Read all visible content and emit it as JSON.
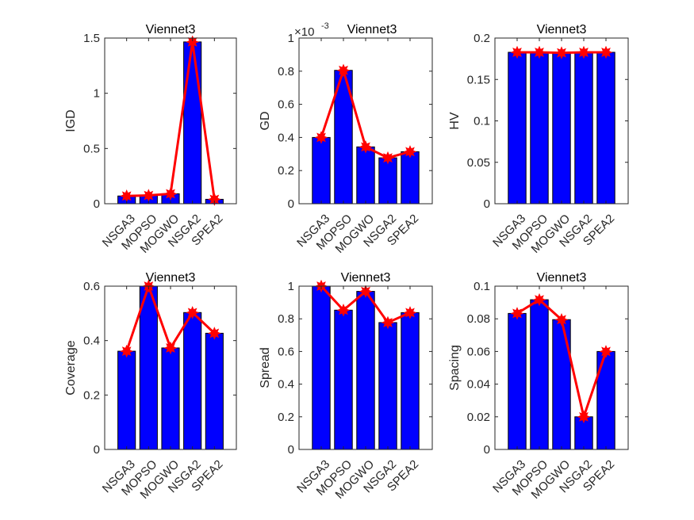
{
  "figure": {
    "bar_color": "#0000ff",
    "bar_edge_color": "#000000",
    "line_color": "#ff0000",
    "axis_color": "#262626"
  },
  "chart_data": [
    {
      "type": "bar",
      "title": "Viennet3",
      "xlabel": "",
      "ylabel": "IGD",
      "categories": [
        "NSGA3",
        "MOPSO",
        "MOGWO",
        "NSGA2",
        "SPEA2"
      ],
      "values": [
        0.07,
        0.075,
        0.09,
        1.465,
        0.04
      ],
      "overlay_line": true,
      "ylim": [
        0,
        1.5
      ],
      "yticks": [
        0,
        0.5,
        1,
        1.5
      ],
      "ytick_labels": [
        "0",
        "0.5",
        "1",
        "1.5"
      ],
      "exponent_label": "",
      "grid": false,
      "legend": "none"
    },
    {
      "type": "bar",
      "title": "Viennet3",
      "xlabel": "",
      "ylabel": "GD",
      "categories": [
        "NSGA3",
        "MOPSO",
        "MOGWO",
        "NSGA2",
        "SPEA2"
      ],
      "values": [
        0.4,
        0.805,
        0.343,
        0.277,
        0.314
      ],
      "value_scale": 0.001,
      "overlay_line": true,
      "ylim": [
        0,
        1
      ],
      "yticks": [
        0,
        0.2,
        0.4,
        0.6,
        0.8,
        1
      ],
      "ytick_labels": [
        "0",
        "0.2",
        "0.4",
        "0.6",
        "0.8",
        "1"
      ],
      "exponent_label": "×10",
      "exponent_power": "-3",
      "grid": false,
      "legend": "none"
    },
    {
      "type": "bar",
      "title": "Viennet3",
      "xlabel": "",
      "ylabel": "HV",
      "categories": [
        "NSGA3",
        "MOPSO",
        "MOGWO",
        "NSGA2",
        "SPEA2"
      ],
      "values": [
        0.1828,
        0.1828,
        0.1822,
        0.1828,
        0.1828
      ],
      "overlay_line": true,
      "ylim": [
        0,
        0.2
      ],
      "yticks": [
        0,
        0.05,
        0.1,
        0.15,
        0.2
      ],
      "ytick_labels": [
        "0",
        "0.05",
        "0.1",
        "0.15",
        "0.2"
      ],
      "exponent_label": "",
      "grid": false,
      "legend": "none"
    },
    {
      "type": "bar",
      "title": "Viennet3",
      "xlabel": "",
      "ylabel": "Coverage",
      "categories": [
        "NSGA3",
        "MOPSO",
        "MOGWO",
        "NSGA2",
        "SPEA2"
      ],
      "values": [
        0.361,
        0.6,
        0.373,
        0.503,
        0.427
      ],
      "overlay_line": true,
      "ylim": [
        0,
        0.6
      ],
      "yticks": [
        0,
        0.2,
        0.4,
        0.6
      ],
      "ytick_labels": [
        "0",
        "0.2",
        "0.4",
        "0.6"
      ],
      "exponent_label": "",
      "grid": false,
      "legend": "none"
    },
    {
      "type": "bar",
      "title": "Viennet3",
      "xlabel": "",
      "ylabel": "Spread",
      "categories": [
        "NSGA3",
        "MOPSO",
        "MOGWO",
        "NSGA2",
        "SPEA2"
      ],
      "values": [
        1.0,
        0.853,
        0.968,
        0.777,
        0.838
      ],
      "overlay_line": true,
      "ylim": [
        0,
        1
      ],
      "yticks": [
        0,
        0.2,
        0.4,
        0.6,
        0.8,
        1
      ],
      "ytick_labels": [
        "0",
        "0.2",
        "0.4",
        "0.6",
        "0.8",
        "1"
      ],
      "exponent_label": "",
      "grid": false,
      "legend": "none"
    },
    {
      "type": "bar",
      "title": "Viennet3",
      "xlabel": "",
      "ylabel": "Spacing",
      "categories": [
        "NSGA3",
        "MOPSO",
        "MOGWO",
        "NSGA2",
        "SPEA2"
      ],
      "values": [
        0.0833,
        0.0917,
        0.0795,
        0.02,
        0.06
      ],
      "overlay_line": true,
      "ylim": [
        0,
        0.1
      ],
      "yticks": [
        0,
        0.02,
        0.04,
        0.06,
        0.08,
        0.1
      ],
      "ytick_labels": [
        "0",
        "0.02",
        "0.04",
        "0.06",
        "0.08",
        "0.1"
      ],
      "exponent_label": "",
      "grid": false,
      "legend": "none"
    }
  ]
}
